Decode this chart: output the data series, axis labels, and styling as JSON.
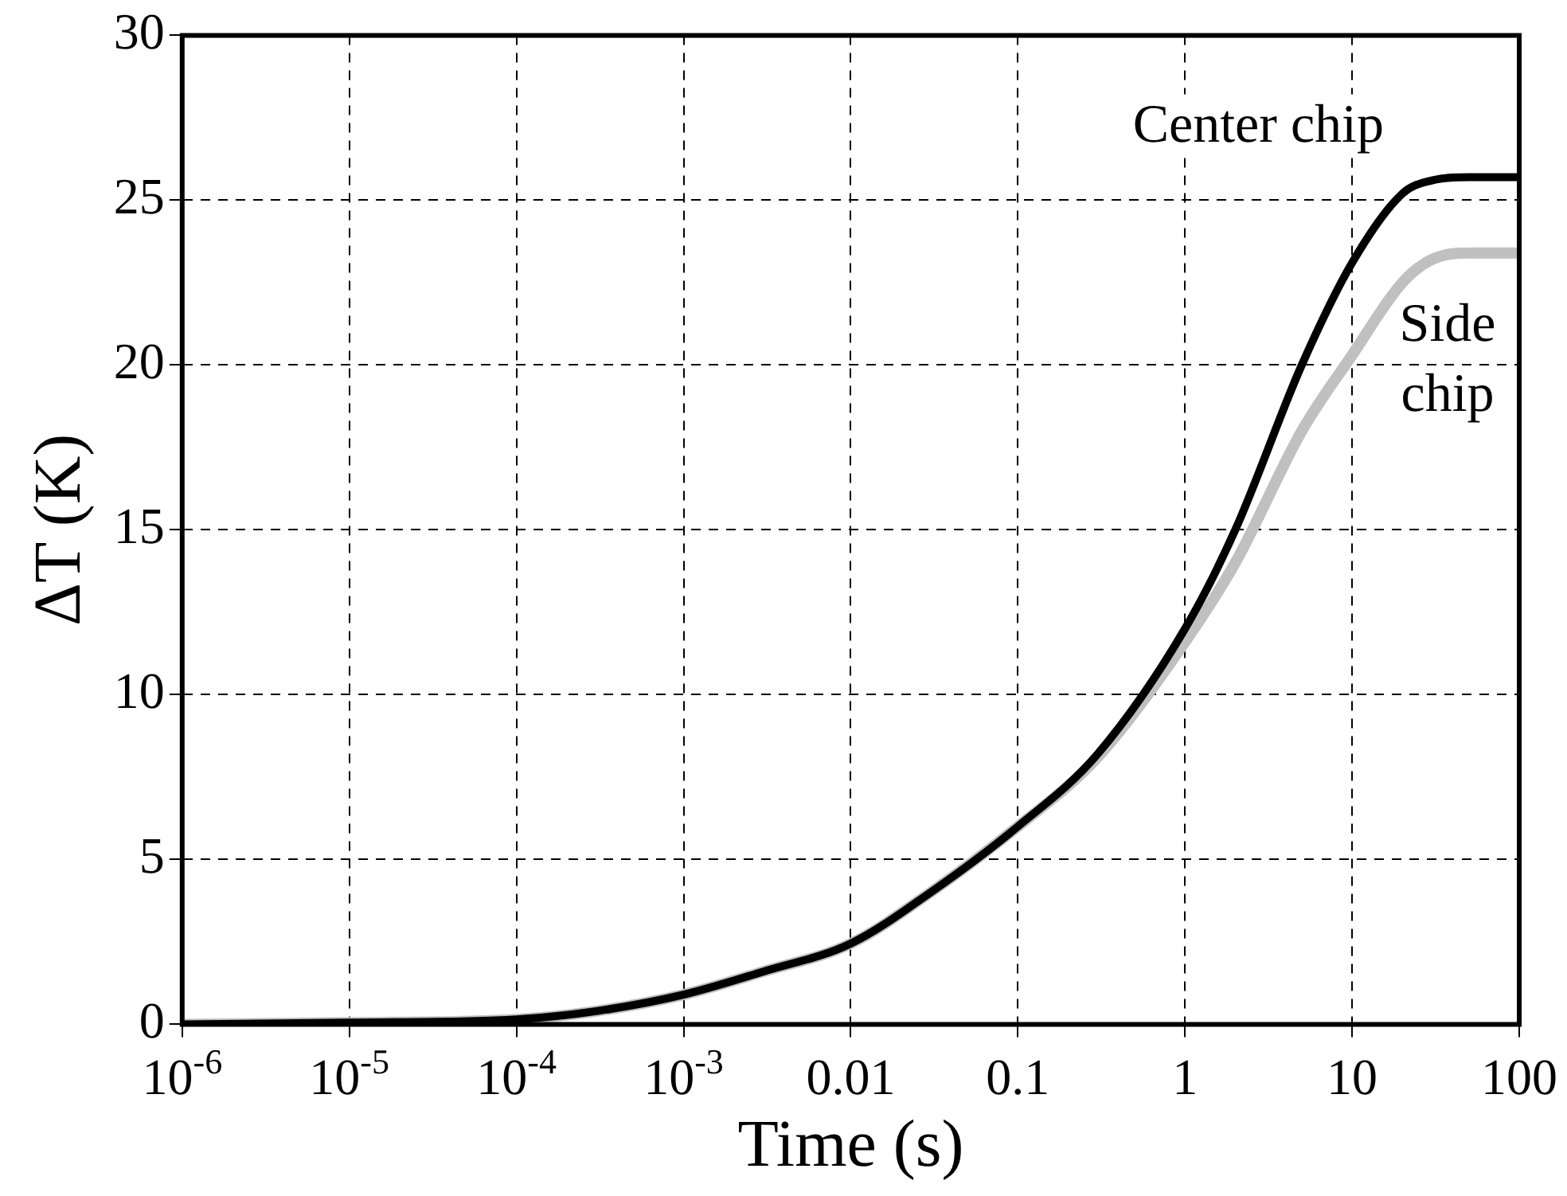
{
  "chart_data": {
    "type": "line",
    "xlabel": "Time (s)",
    "ylabel": "ΔT (K)",
    "log": "x",
    "xlim": [
      1e-06,
      100
    ],
    "ylim": [
      0,
      30
    ],
    "xticks": [
      {
        "value": 1e-06,
        "label": "10$^{-6}$"
      },
      {
        "value": 1e-05,
        "label": "10$^{-5}$"
      },
      {
        "value": 0.0001,
        "label": "10$^{-4}$"
      },
      {
        "value": 0.001,
        "label": "10$^{-3}$"
      },
      0.01,
      0.1,
      1,
      10,
      100
    ],
    "yticks": [
      0,
      5,
      10,
      15,
      20,
      25,
      30
    ],
    "grid": true,
    "legend": false,
    "marker": "none",
    "line_style": "solid",
    "x": [
      1e-06,
      1e-05,
      0.0001,
      0.0003,
      0.001,
      0.003,
      0.01,
      0.03,
      0.1,
      0.3,
      1,
      2,
      5,
      10,
      20,
      30,
      50,
      100
    ],
    "series": [
      {
        "name": "Center chip",
        "color": "#000000",
        "values": [
          0,
          0.05,
          0.15,
          0.4,
          0.9,
          1.6,
          2.45,
          4.0,
          6.0,
          8.2,
          12.0,
          15.0,
          20.0,
          23.1,
          25.2,
          25.6,
          25.7,
          25.7
        ]
      },
      {
        "name": "Side chip",
        "color": "#c0c0c0",
        "values": [
          0,
          0.05,
          0.15,
          0.4,
          0.9,
          1.6,
          2.45,
          4.0,
          6.0,
          8.1,
          11.6,
          14.0,
          18.0,
          20.3,
          22.5,
          23.2,
          23.4,
          23.4
        ]
      }
    ]
  }
}
